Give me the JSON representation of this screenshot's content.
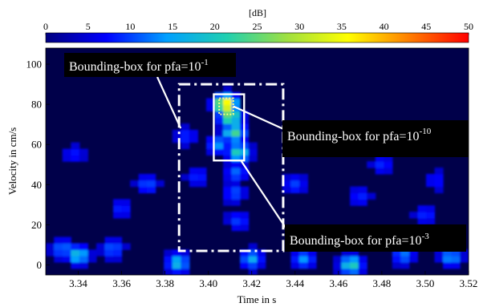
{
  "chart_data": {
    "type": "heatmap",
    "title": "",
    "xlabel": "Time in s",
    "ylabel": "Velocity in cm/s",
    "xlim": [
      3.325,
      3.52
    ],
    "ylim": [
      -5,
      108
    ],
    "xticks": [
      3.34,
      3.36,
      3.38,
      3.4,
      3.42,
      3.44,
      3.46,
      3.48,
      3.5,
      3.52
    ],
    "yticks": [
      0,
      20,
      40,
      60,
      80,
      100
    ],
    "grid": false,
    "colorbar": {
      "label": "[dB]",
      "min": 0,
      "max": 50,
      "ticks": [
        0,
        5,
        10,
        15,
        20,
        25,
        30,
        35,
        40,
        45,
        50
      ],
      "colormap": [
        "#000080",
        "#0000ff",
        "#00a0ff",
        "#20d0b0",
        "#a0e040",
        "#ffff00",
        "#ff8000",
        "#ff0000"
      ],
      "placement": "top"
    },
    "background_level_db": 3,
    "hotspots": [
      {
        "x": 3.408,
        "y": 80,
        "value": 40
      },
      {
        "x": 3.41,
        "y": 74,
        "value": 28
      },
      {
        "x": 3.412,
        "y": 66,
        "value": 24
      },
      {
        "x": 3.414,
        "y": 56,
        "value": 22
      },
      {
        "x": 3.413,
        "y": 46,
        "value": 12
      },
      {
        "x": 3.412,
        "y": 36,
        "value": 11
      },
      {
        "x": 3.414,
        "y": 22,
        "value": 10
      },
      {
        "x": 3.405,
        "y": 60,
        "value": 14
      },
      {
        "x": 3.34,
        "y": 5,
        "value": 19
      },
      {
        "x": 3.333,
        "y": 8,
        "value": 13
      },
      {
        "x": 3.356,
        "y": 8,
        "value": 12
      },
      {
        "x": 3.386,
        "y": 1,
        "value": 18
      },
      {
        "x": 3.42,
        "y": 3,
        "value": 16
      },
      {
        "x": 3.444,
        "y": 3,
        "value": 14
      },
      {
        "x": 3.466,
        "y": 0,
        "value": 22
      },
      {
        "x": 3.49,
        "y": 5,
        "value": 13
      },
      {
        "x": 3.512,
        "y": 4,
        "value": 15
      },
      {
        "x": 3.372,
        "y": 40,
        "value": 11
      },
      {
        "x": 3.44,
        "y": 40,
        "value": 10
      },
      {
        "x": 3.39,
        "y": 64,
        "value": 9
      },
      {
        "x": 3.36,
        "y": 28,
        "value": 9
      },
      {
        "x": 3.48,
        "y": 50,
        "value": 9
      },
      {
        "x": 3.5,
        "y": 25,
        "value": 9
      },
      {
        "x": 3.45,
        "y": 58,
        "value": 8
      },
      {
        "x": 3.338,
        "y": 55,
        "value": 8
      },
      {
        "x": 3.47,
        "y": 34,
        "value": 9
      },
      {
        "x": 3.395,
        "y": 44,
        "value": 9
      },
      {
        "x": 3.505,
        "y": 42,
        "value": 8
      }
    ],
    "annotations": [
      {
        "name": "pfa-1",
        "text": "Bounding-box for pfa=10",
        "superscript": "-1",
        "box": {
          "x0": 3.3865,
          "x1": 3.4345,
          "y0": 7,
          "y1": 90
        },
        "style": "dash-dot"
      },
      {
        "name": "pfa-3",
        "text": "Bounding-box for pfa=10",
        "superscript": "-3",
        "box": {
          "x0": 3.4025,
          "x1": 3.4165,
          "y0": 52,
          "y1": 85
        },
        "style": "solid"
      },
      {
        "name": "pfa-10",
        "text": "Bounding-box for pfa=10",
        "superscript": "-10",
        "box": {
          "x0": 3.405,
          "x1": 3.4115,
          "y0": 75,
          "y1": 83
        },
        "style": "dotted"
      }
    ]
  }
}
